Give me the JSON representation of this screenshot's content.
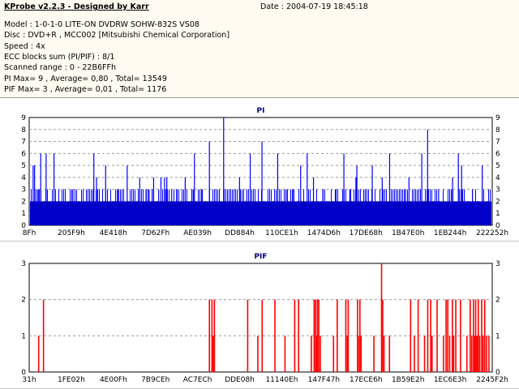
{
  "window": {
    "title": "KProbe v2.2.3 - Designed by Karr",
    "date": "Date : 2004-07-19 18:45:18"
  },
  "info": {
    "model": "Model : 1-0-1-0 LITE-ON DVDRW SOHW-832S  VS08",
    "disc": "Disc : DVD+R , MCC002 [Mitsubishi Chemical Corporation]",
    "speed": "Speed : 4x",
    "ecc": "ECC blocks sum (PI/PIF) : 8/1",
    "range": "Scanned range : 0 - 22B6FFh",
    "pi_stats": "PI Max= 9 , Average= 0,80 , Total= 13549",
    "pif_stats": "PIF Max= 3 , Average= 0,01 , Total= 1176"
  },
  "colors": {
    "panel_bg": "#fffbf0",
    "pi_bar": "#0000ff",
    "pif_bar": "#ff0000",
    "pi_base": "#0000c8",
    "grid": "#9c9c9c",
    "title": "#000080"
  },
  "chart_data": [
    {
      "type": "bar",
      "title": "PI",
      "ylim": [
        0,
        9
      ],
      "y_ticks": [
        "0",
        "1",
        "2",
        "3",
        "4",
        "5",
        "6",
        "7",
        "8",
        "9"
      ],
      "x_ticks": [
        "8Fh",
        "205F9h",
        "4E418h",
        "7D62Fh",
        "AE039h",
        "DD884h",
        "110CE1h",
        "1474D6h",
        "17DE68h",
        "1B47E0h",
        "1EB244h",
        "222252h"
      ],
      "x_range": [
        0,
        2275327
      ],
      "grid": true,
      "series": [
        {
          "baseline_level": 2,
          "peaks_x": [
            16900,
            24100,
            42200,
            54300,
            80900,
            119500,
            212700,
            315300,
            328600,
            373300,
            432100,
            479100,
            540700,
            571800,
            587200,
            601800,
            609100,
            633900,
            645000,
            662500,
            673800,
            698000,
            722400,
            764200,
            797600,
            809500,
            848300,
            883100,
            953000,
            1031100,
            1067300,
            1083800,
            1141400,
            1218600,
            1265600,
            1296800,
            1331400,
            1363500,
            1394600,
            1440800,
            1501900,
            1544000,
            1572900,
            1603100,
            1607800,
            1649200,
            1683400,
            1732100,
            1768700,
            1847100,
            1863900,
            1926700,
            1955400,
            2009400,
            2077800,
            2106400,
            2122400,
            2175900,
            2223700
          ],
          "peaks_y": [
            5,
            5,
            3,
            6,
            6,
            6,
            3,
            6,
            4,
            5,
            3,
            5,
            4,
            3,
            3,
            3,
            4,
            3,
            4,
            4,
            4,
            3,
            3,
            4,
            3,
            6,
            3,
            7,
            9,
            4,
            3,
            6,
            7,
            6,
            3,
            3,
            5,
            6,
            4,
            3,
            3,
            6,
            3,
            4,
            5,
            3,
            5,
            4,
            6,
            3,
            4,
            6,
            8,
            3,
            4,
            6,
            5,
            3,
            5
          ]
        }
      ]
    },
    {
      "type": "bar",
      "title": "PIF",
      "ylim": [
        0,
        3
      ],
      "y_ticks": [
        "0",
        "1",
        "2",
        "3"
      ],
      "x_ticks": [
        "31h",
        "1FE02h",
        "4E00Fh",
        "7B9CEh",
        "AC7ECh",
        "DDE08h",
        "11140Eh",
        "147F47h",
        "17ECE6h",
        "1B59E2h",
        "1EC6E3h",
        "2245F2h"
      ],
      "x_range": [
        0,
        2275327
      ],
      "grid": true,
      "series": [
        {
          "x": [
            43300,
            67100,
            882400,
            895000,
            900900,
            907000,
            1070400,
            1120400,
            1141500,
            1204400,
            1253800,
            1301500,
            1320600,
            1383300,
            1397000,
            1404100,
            1409500,
            1413000,
            1419900,
            1427500,
            1492200,
            1510500,
            1552600,
            1559700,
            1564300,
            1610500,
            1614400,
            1621900,
            1627300,
            1690700,
            1728300,
            1733900,
            1740300,
            1767000,
            1871000,
            1889500,
            1908000,
            1939500,
            1955200,
            1969900,
            1976400,
            2001300,
            2032700,
            2045300,
            2053700,
            2063000,
            2076100,
            2082400,
            2093100,
            2116300,
            2147500,
            2163900,
            2171800,
            2180400,
            2185600,
            2190900,
            2197500,
            2203600,
            2210800,
            2220400,
            2226900,
            2235200,
            2244400,
            2255800
          ],
          "y": [
            1,
            2,
            2,
            2,
            1,
            2,
            2,
            1,
            2,
            2,
            1,
            2,
            2,
            1,
            2,
            2,
            1,
            2,
            2,
            1,
            1,
            2,
            2,
            1,
            2,
            2,
            1,
            2,
            1,
            1,
            3,
            2,
            1,
            1,
            2,
            1,
            2,
            1,
            2,
            2,
            1,
            2,
            1,
            2,
            2,
            1,
            2,
            1,
            2,
            2,
            1,
            2,
            1,
            2,
            1,
            2,
            1,
            2,
            1,
            2,
            1,
            2,
            1,
            1
          ]
        }
      ]
    }
  ]
}
